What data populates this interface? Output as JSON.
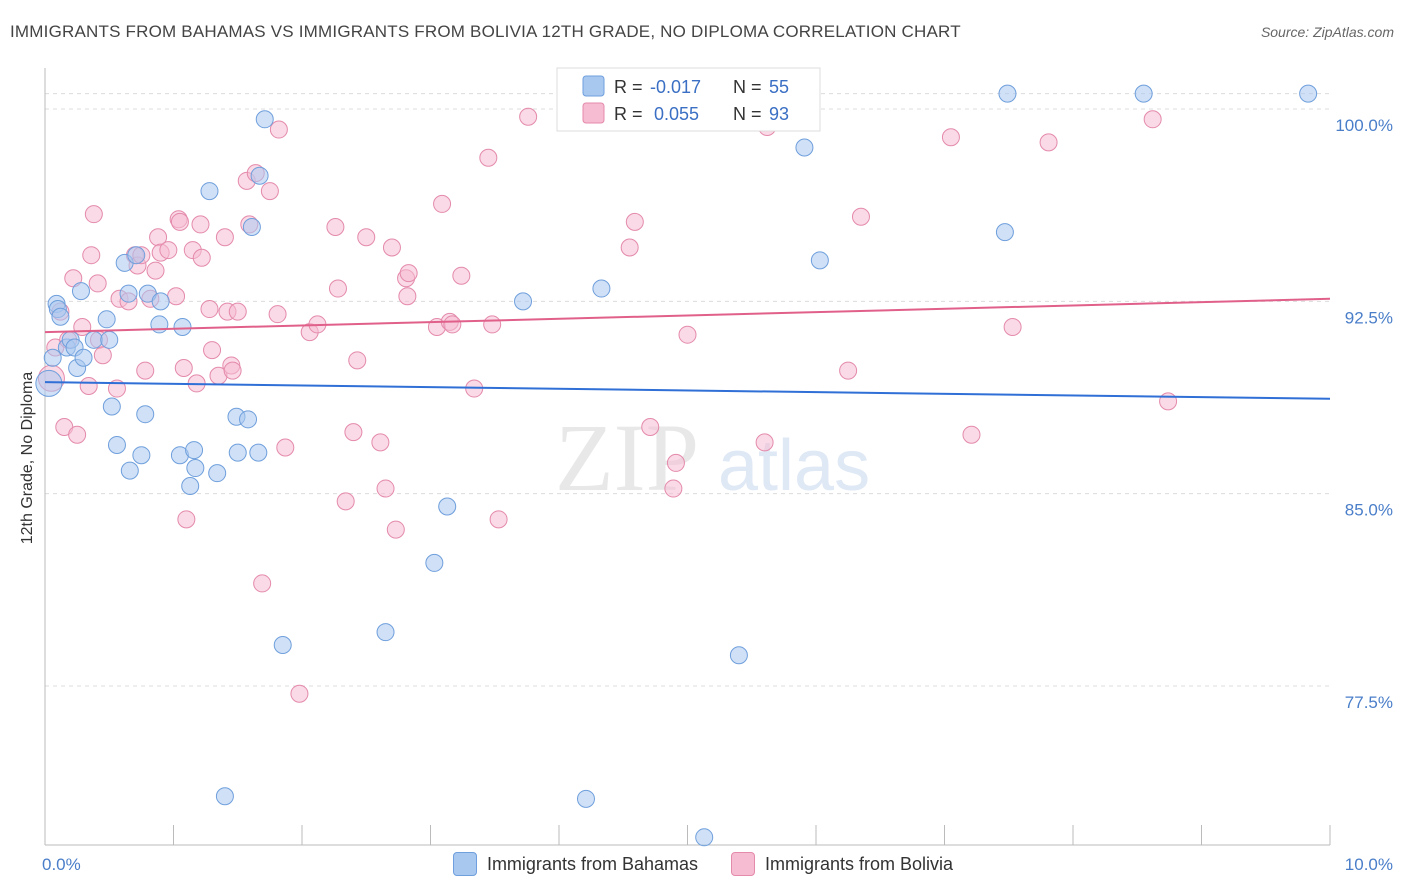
{
  "chart_data": {
    "type": "scatter",
    "title": "IMMIGRANTS FROM BAHAMAS VS IMMIGRANTS FROM BOLIVIA 12TH GRADE, NO DIPLOMA CORRELATION CHART",
    "source": "Source: ZipAtlas.com",
    "xlabel": "",
    "ylabel": "12th Grade, No Diploma",
    "xlim": [
      0,
      10
    ],
    "ylim": [
      71.3,
      101.6
    ],
    "x_tick_labels": [
      {
        "value": 0,
        "label": "0.0%"
      },
      {
        "value": 10,
        "label": "10.0%"
      }
    ],
    "y_ticks": [
      {
        "value": 77.5,
        "label": "77.5%"
      },
      {
        "value": 85.0,
        "label": "85.0%"
      },
      {
        "value": 92.5,
        "label": "92.5%"
      },
      {
        "value": 100.0,
        "label": "100.0%"
      }
    ],
    "grid": true,
    "legend_position": "top-center",
    "watermark": {
      "zip": "ZIP",
      "atlas": "atlas"
    },
    "series": [
      {
        "name": "Immigrants from Bahamas",
        "color": "#a9c8f0",
        "edge": "#6f9fdc",
        "line_color": "#2f6fd6",
        "R": "-0.017",
        "N": "55",
        "trend": {
          "x": [
            0,
            10
          ],
          "y": [
            89.35,
            88.7
          ]
        },
        "x": [
          0.03,
          0.06,
          0.09,
          0.1,
          0.12,
          0.17,
          0.2,
          0.23,
          0.25,
          0.28,
          0.3,
          0.38,
          0.48,
          0.5,
          0.52,
          0.56,
          0.62,
          0.65,
          0.66,
          0.71,
          0.75,
          0.78,
          0.8,
          0.89,
          0.9,
          1.05,
          1.07,
          1.13,
          1.16,
          1.17,
          1.28,
          1.34,
          1.4,
          1.49,
          1.5,
          1.58,
          1.61,
          1.66,
          1.67,
          1.71,
          1.85,
          2.65,
          3.03,
          3.13,
          3.72,
          4.21,
          4.33,
          5.13,
          5.4,
          5.91,
          6.03,
          7.47,
          7.49,
          8.55,
          9.83
        ],
        "y": [
          89.3,
          90.3,
          92.4,
          92.2,
          91.9,
          90.7,
          91.0,
          90.7,
          89.9,
          92.9,
          90.3,
          91.0,
          91.8,
          91.0,
          88.4,
          86.9,
          94.0,
          92.8,
          85.9,
          94.3,
          86.5,
          88.1,
          92.8,
          91.6,
          92.5,
          86.5,
          91.5,
          85.3,
          86.7,
          86.0,
          96.8,
          85.8,
          73.2,
          88.0,
          86.6,
          87.9,
          95.4,
          86.6,
          97.4,
          99.6,
          79.1,
          79.6,
          82.3,
          84.5,
          92.5,
          73.1,
          93.0,
          71.6,
          78.7,
          98.5,
          94.1,
          95.2,
          100.6,
          100.6,
          100.6
        ]
      },
      {
        "name": "Immigrants from Bolivia",
        "color": "#f6bcd1",
        "edge": "#e48aab",
        "line_color": "#e0608a",
        "R": "0.055",
        "N": "93",
        "trend": {
          "x": [
            0,
            10
          ],
          "y": [
            91.3,
            92.6
          ]
        },
        "x": [
          0.05,
          0.08,
          0.12,
          0.15,
          0.18,
          0.22,
          0.25,
          0.29,
          0.34,
          0.36,
          0.38,
          0.41,
          0.42,
          0.45,
          0.56,
          0.58,
          0.65,
          0.7,
          0.72,
          0.75,
          0.78,
          0.82,
          0.86,
          0.88,
          0.9,
          0.96,
          1.02,
          1.04,
          1.05,
          1.08,
          1.1,
          1.15,
          1.18,
          1.21,
          1.22,
          1.28,
          1.3,
          1.35,
          1.4,
          1.42,
          1.45,
          1.46,
          1.5,
          1.57,
          1.59,
          1.64,
          1.69,
          1.75,
          1.81,
          1.82,
          1.87,
          1.98,
          2.06,
          2.12,
          2.26,
          2.28,
          2.34,
          2.4,
          2.43,
          2.5,
          2.61,
          2.65,
          2.7,
          2.73,
          2.81,
          2.82,
          2.83,
          3.05,
          3.09,
          3.15,
          3.17,
          3.24,
          3.34,
          3.45,
          3.48,
          3.53,
          3.76,
          4.55,
          4.59,
          4.71,
          4.89,
          4.91,
          5.0,
          5.6,
          5.62,
          6.25,
          6.35,
          7.05,
          7.21,
          7.53,
          7.81,
          8.62,
          8.74
        ],
        "y": [
          89.5,
          90.7,
          92.1,
          87.6,
          91.0,
          93.4,
          87.3,
          91.5,
          89.2,
          94.3,
          95.9,
          93.2,
          91.0,
          90.4,
          89.1,
          92.6,
          92.5,
          94.3,
          93.9,
          94.3,
          89.8,
          92.6,
          93.7,
          95.0,
          94.4,
          94.5,
          92.7,
          95.7,
          95.6,
          89.9,
          84.0,
          94.5,
          89.3,
          95.5,
          94.2,
          92.2,
          90.6,
          89.6,
          95.0,
          92.1,
          90.0,
          89.8,
          92.1,
          97.2,
          95.5,
          97.5,
          81.5,
          96.8,
          92.0,
          99.2,
          86.8,
          77.2,
          91.3,
          91.6,
          95.4,
          93.0,
          84.7,
          87.4,
          90.2,
          95.0,
          87.0,
          85.2,
          94.6,
          83.6,
          93.4,
          92.7,
          93.6,
          91.5,
          96.3,
          91.7,
          91.6,
          93.5,
          89.1,
          98.1,
          91.6,
          84.0,
          99.7,
          94.6,
          95.6,
          87.6,
          85.2,
          86.2,
          91.2,
          87.0,
          99.3,
          89.8,
          95.8,
          98.9,
          87.3,
          91.5,
          98.7,
          99.6,
          88.6
        ]
      }
    ]
  }
}
